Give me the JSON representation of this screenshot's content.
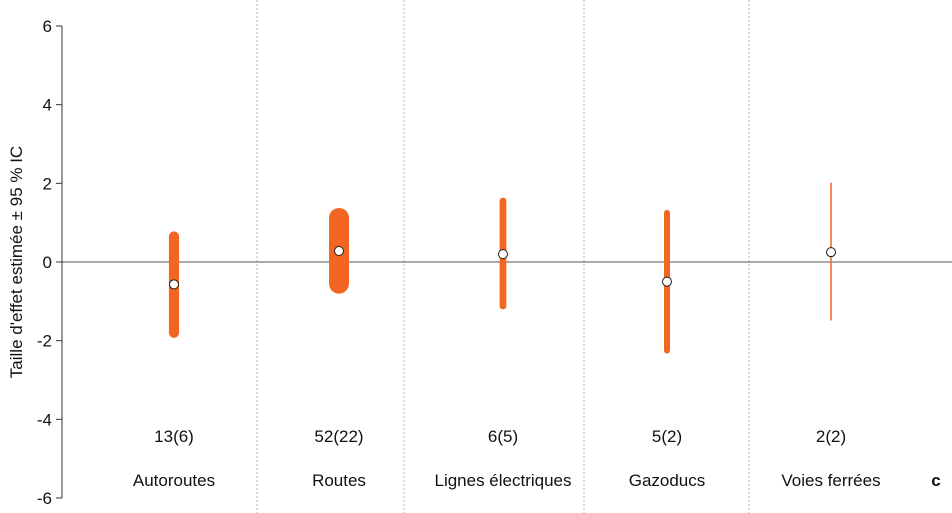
{
  "chart_data": {
    "type": "scatter",
    "ylabel": "Taille d'effet estimée ± 95 % IC",
    "xlabel": "",
    "title": "",
    "ylim": [
      -6,
      6
    ],
    "yticks": [
      6,
      4,
      2,
      0,
      -2,
      -4,
      -6
    ],
    "ytick_labels": [
      "6",
      "4",
      "2",
      "0",
      "-2",
      "-4",
      "-6"
    ],
    "reference_line": 0,
    "grid": "vertical dotted separators between categories",
    "panel_letter": "c",
    "accent_color": "#f26522",
    "categories": [
      "Autoroutes",
      "Routes",
      "Lignes électriques",
      "Gazoducs",
      "Voies ferrées"
    ],
    "counts": [
      "13(6)",
      "52(22)",
      "6(5)",
      "5(2)",
      "2(2)"
    ],
    "estimates": [
      -0.57,
      0.28,
      0.2,
      -0.5,
      0.25
    ],
    "ci_lower": [
      -1.8,
      -0.55,
      -1.12,
      -2.25,
      -1.47
    ],
    "ci_upper": [
      0.65,
      1.12,
      1.55,
      1.25,
      2.0
    ],
    "studies": [
      13,
      52,
      6,
      5,
      2
    ]
  }
}
